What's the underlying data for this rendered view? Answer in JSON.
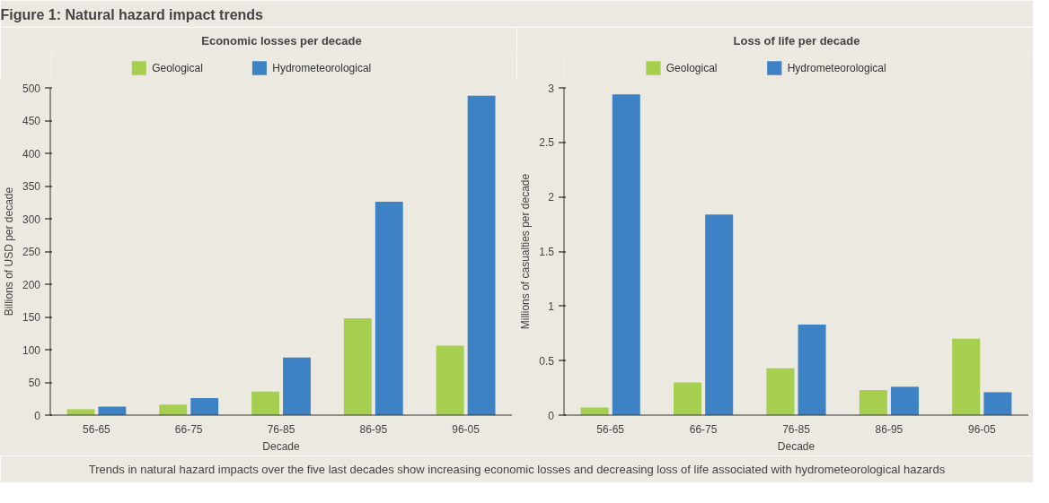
{
  "chart_data": [
    {
      "type": "bar",
      "title": "Economic losses per decade",
      "xlabel": "Decade",
      "ylabel": "Billions of USD per decade",
      "categories": [
        "56-65",
        "66-75",
        "76-85",
        "86-95",
        "96-05"
      ],
      "series": [
        {
          "name": "Geological",
          "color": "#a6cf50",
          "values": [
            9,
            16,
            36,
            148,
            106
          ]
        },
        {
          "name": "Hydrometeorological",
          "color": "#3d82c4",
          "values": [
            13,
            26,
            88,
            326,
            488
          ]
        }
      ],
      "ylim": [
        0,
        500
      ],
      "yticks": [
        0,
        50,
        100,
        150,
        200,
        250,
        300,
        350,
        400,
        450,
        500
      ],
      "grid": false,
      "legend": "top",
      "annotations": [
        "Figure 1: Natural hazard impact trends",
        "Trends in natural hazard impacts over the five last decades show increasing economic losses and decreasing loss of life associated with hydrometeorological hazards"
      ]
    },
    {
      "type": "bar",
      "title": "Loss of life per decade",
      "xlabel": "Decade",
      "ylabel": "Millions of casualties per decade",
      "categories": [
        "56-65",
        "66-75",
        "76-85",
        "86-95",
        "96-05"
      ],
      "series": [
        {
          "name": "Geological",
          "color": "#a6cf50",
          "values": [
            0.07,
            0.3,
            0.43,
            0.23,
            0.7
          ]
        },
        {
          "name": "Hydrometeorological",
          "color": "#3d82c4",
          "values": [
            2.94,
            1.84,
            0.83,
            0.26,
            0.21
          ]
        }
      ],
      "ylim": [
        0,
        3
      ],
      "yticks": [
        0,
        0.5,
        1,
        1.5,
        2,
        2.5,
        3
      ],
      "grid": false,
      "legend": "top"
    }
  ]
}
